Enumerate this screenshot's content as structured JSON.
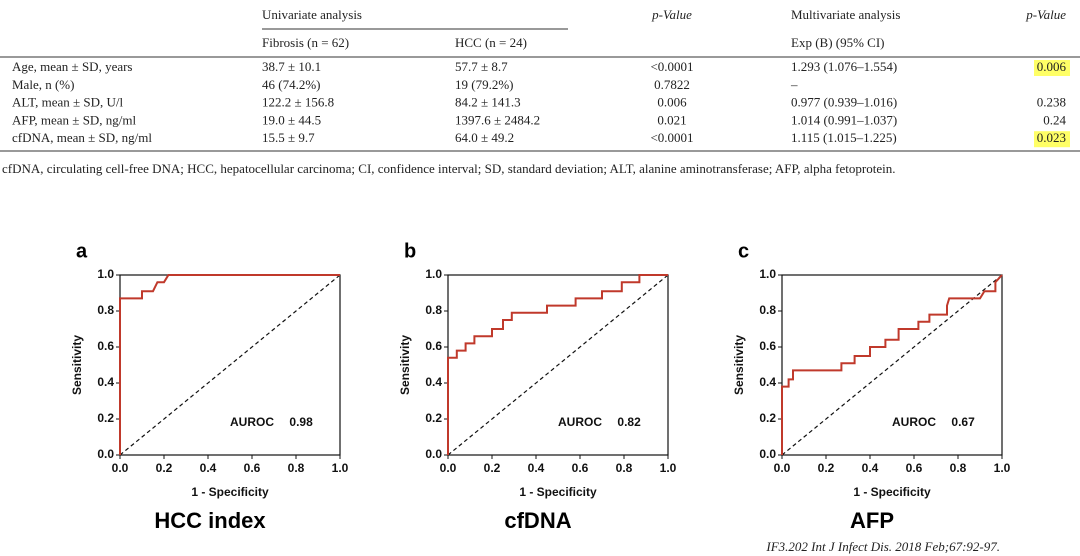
{
  "table": {
    "header": {
      "univariate": "Univariate analysis",
      "p1": "p-Value",
      "multivariate": "Multivariate analysis",
      "p2": "p-Value",
      "fibrosis": "Fibrosis (n = 62)",
      "hcc": "HCC (n = 24)",
      "exp": "Exp (B) (95% CI)"
    },
    "rows": [
      [
        "Age, mean ± SD, years",
        "38.7 ± 10.1",
        "57.7 ± 8.7",
        "<0.0001",
        "1.293 (1.076–1.554)",
        "0.006"
      ],
      [
        "Male, n (%)",
        "46 (74.2%)",
        "19 (79.2%)",
        "0.7822",
        "–"
      ],
      [
        "ALT, mean ± SD, U/l",
        "122.2 ± 156.8",
        "84.2 ± 141.3",
        "0.006",
        "0.977 (0.939–1.016)",
        "0.238"
      ],
      [
        "AFP, mean ± SD, ng/ml",
        "19.0 ± 44.5",
        "1397.6 ± 2484.2",
        "0.021",
        "1.014 (0.991–1.037)",
        "0.24"
      ],
      [
        "cfDNA, mean ± SD, ng/ml",
        "15.5 ± 9.7",
        "64.0 ± 49.2",
        "<0.0001",
        "1.115 (1.015–1.225)",
        "0.023"
      ]
    ],
    "footnote": "cfDNA, circulating cell-free DNA; HCC, hepatocellular carcinoma; CI, confidence interval; SD, standard deviation; ALT, alanine aminotransferase; AFP, alpha fetoprotein."
  },
  "chart_data": [
    {
      "type": "line",
      "panel": "a",
      "title": "HCC index",
      "xlabel": "1 - Specificity",
      "ylabel": "Sensitivity",
      "color": "#c0392b",
      "annotation": "AUROC",
      "auroc": 0.98,
      "x": [
        0,
        0,
        0.1,
        0.1,
        0.15,
        0.17,
        0.2,
        0.22,
        1
      ],
      "y": [
        0,
        0.87,
        0.87,
        0.91,
        0.91,
        0.96,
        0.96,
        1,
        1
      ],
      "xlim": [
        0,
        1
      ],
      "ylim": [
        0,
        1
      ],
      "xticks": [
        {
          "value": 0,
          "label": "0.0"
        },
        0.2,
        0.4,
        0.6,
        0.8,
        {
          "value": 1,
          "label": "1.0"
        }
      ],
      "yticks": [
        {
          "value": 0,
          "label": "0.0"
        },
        0.2,
        0.4,
        0.6,
        0.8,
        {
          "value": 1,
          "label": "1.0"
        }
      ]
    },
    {
      "type": "line",
      "panel": "b",
      "title": "cfDNA",
      "xlabel": "1 - Specificity",
      "ylabel": "Sensitivity",
      "color": "#c0392b",
      "annotation": "AUROC",
      "auroc": 0.82,
      "x": [
        0,
        0,
        0.04,
        0.04,
        0.08,
        0.08,
        0.12,
        0.12,
        0.2,
        0.2,
        0.25,
        0.25,
        0.29,
        0.29,
        0.45,
        0.45,
        0.58,
        0.58,
        0.7,
        0.7,
        0.79,
        0.79,
        0.87,
        0.87,
        1
      ],
      "y": [
        0,
        0.54,
        0.54,
        0.58,
        0.58,
        0.62,
        0.62,
        0.66,
        0.66,
        0.7,
        0.7,
        0.75,
        0.75,
        0.79,
        0.79,
        0.83,
        0.83,
        0.87,
        0.87,
        0.91,
        0.91,
        0.96,
        0.96,
        1,
        1
      ],
      "xlim": [
        0,
        1
      ],
      "ylim": [
        0,
        1
      ],
      "xticks": [
        {
          "value": 0,
          "label": "0.0"
        },
        0.2,
        0.4,
        0.6,
        0.8,
        {
          "value": 1,
          "label": "1.0"
        }
      ],
      "yticks": [
        {
          "value": 0,
          "label": "0.0"
        },
        0.2,
        0.4,
        0.6,
        0.8,
        {
          "value": 1,
          "label": "1.0"
        }
      ]
    },
    {
      "type": "line",
      "panel": "c",
      "title": "AFP",
      "xlabel": "1 - Specificity",
      "ylabel": "Sensitivity",
      "color": "#c0392b",
      "annotation": "AUROC",
      "auroc": 0.67,
      "x": [
        0,
        0,
        0.03,
        0.03,
        0.05,
        0.05,
        0.27,
        0.27,
        0.33,
        0.33,
        0.4,
        0.4,
        0.47,
        0.47,
        0.53,
        0.53,
        0.62,
        0.62,
        0.67,
        0.67,
        0.75,
        0.75,
        0.76,
        0.9,
        0.92,
        0.97,
        0.97,
        1
      ],
      "y": [
        0,
        0.38,
        0.38,
        0.42,
        0.42,
        0.47,
        0.47,
        0.51,
        0.51,
        0.55,
        0.55,
        0.6,
        0.6,
        0.64,
        0.64,
        0.7,
        0.7,
        0.74,
        0.74,
        0.78,
        0.78,
        0.83,
        0.87,
        0.87,
        0.91,
        0.91,
        0.96,
        1
      ],
      "xlim": [
        0,
        1
      ],
      "ylim": [
        0,
        1
      ],
      "xticks": [
        {
          "value": 0,
          "label": "0.0"
        },
        0.2,
        0.4,
        0.6,
        0.8,
        {
          "value": 1,
          "label": "1.0"
        }
      ],
      "yticks": [
        {
          "value": 0,
          "label": "0.0"
        },
        0.2,
        0.4,
        0.6,
        0.8,
        {
          "value": 1,
          "label": "1.0"
        }
      ]
    }
  ],
  "citation": "IF3.202 Int J Infect Dis. 2018 Feb;67:92-97."
}
